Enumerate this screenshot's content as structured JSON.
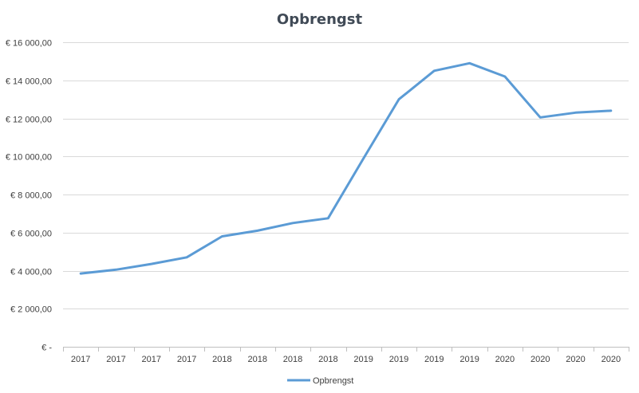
{
  "chart_data": {
    "type": "line",
    "title": "Opbrengst",
    "xlabel": "",
    "ylabel": "",
    "categories": [
      "2017",
      "2017",
      "2017",
      "2017",
      "2018",
      "2018",
      "2018",
      "2018",
      "2019",
      "2019",
      "2019",
      "2019",
      "2020",
      "2020",
      "2020",
      "2020"
    ],
    "series": [
      {
        "name": "Opbrengst",
        "color": "#5b9bd5",
        "values": [
          3850,
          4050,
          4350,
          4700,
          5800,
          6100,
          6500,
          6750,
          9900,
          13000,
          14500,
          14900,
          14200,
          12050,
          12300,
          12400
        ]
      }
    ],
    "ylim": [
      0,
      16000
    ],
    "y_ticks": [
      0,
      2000,
      4000,
      6000,
      8000,
      10000,
      12000,
      14000,
      16000
    ],
    "y_tick_labels": [
      "€ -",
      "€ 2 000,00",
      "€ 4 000,00",
      "€ 6 000,00",
      "€ 8 000,00",
      "€ 10 000,00",
      "€ 12 000,00",
      "€ 14 000,00",
      "€ 16 000,00"
    ],
    "grid": true,
    "legend_position": "bottom"
  }
}
